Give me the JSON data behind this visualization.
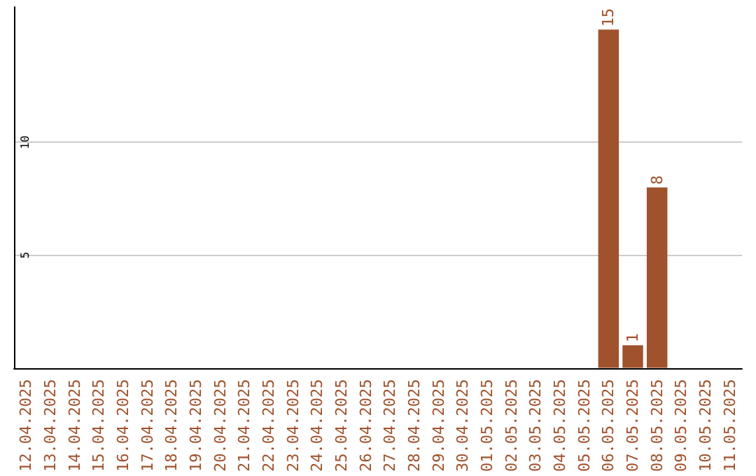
{
  "chart_data": {
    "type": "bar",
    "categories": [
      "12.04.2025",
      "13.04.2025",
      "14.04.2025",
      "15.04.2025",
      "16.04.2025",
      "17.04.2025",
      "18.04.2025",
      "19.04.2025",
      "20.04.2025",
      "21.04.2025",
      "22.04.2025",
      "23.04.2025",
      "24.04.2025",
      "25.04.2025",
      "26.04.2025",
      "27.04.2025",
      "28.04.2025",
      "29.04.2025",
      "30.04.2025",
      "01.05.2025",
      "02.05.2025",
      "03.05.2025",
      "04.05.2025",
      "05.05.2025",
      "06.05.2025",
      "07.05.2025",
      "08.05.2025",
      "09.05.2025",
      "10.05.2025",
      "11.05.2025"
    ],
    "values": [
      0,
      0,
      0,
      0,
      0,
      0,
      0,
      0,
      0,
      0,
      0,
      0,
      0,
      0,
      0,
      0,
      0,
      0,
      0,
      0,
      0,
      0,
      0,
      0,
      15,
      1,
      8,
      0,
      0,
      0
    ],
    "value_labels": [
      null,
      null,
      null,
      null,
      null,
      null,
      null,
      null,
      null,
      null,
      null,
      null,
      null,
      null,
      null,
      null,
      null,
      null,
      null,
      null,
      null,
      null,
      null,
      null,
      "15",
      "1",
      "8",
      null,
      null,
      null
    ],
    "color": "#a0522d",
    "ylim": [
      0,
      16
    ],
    "yticks": [
      5,
      10
    ],
    "grid": "y"
  }
}
